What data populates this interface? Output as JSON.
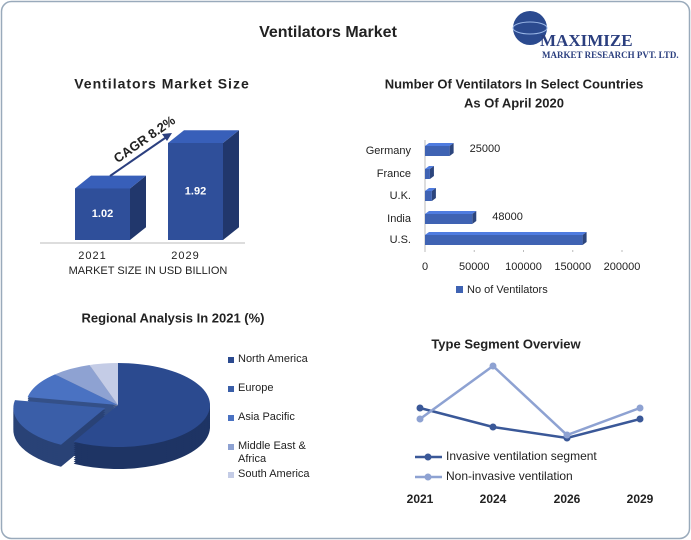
{
  "title": "Ventilators Market",
  "logo": {
    "name": "MAXIMIZE",
    "tagline": "MARKET RESEARCH PVT. LTD."
  },
  "chart_data": [
    {
      "type": "bar3d",
      "title": "Ventilators Market Size",
      "categories": [
        "2021",
        "2029"
      ],
      "values": [
        1.02,
        1.92
      ],
      "color": "#2f4f9a",
      "annotation": "CAGR 8.2%",
      "x_label": "MARKET SIZE IN USD BILLION"
    },
    {
      "type": "hbar",
      "title": [
        "Number Of Ventilators In Select Countries",
        "As Of April 2020"
      ],
      "categories": [
        "Germany",
        "France",
        "U.K.",
        "India",
        "U.S."
      ],
      "series": [
        {
          "name": "No of Ventilators",
          "color": "#3f63b3",
          "values": [
            25000,
            5000,
            7000,
            48000,
            160000
          ],
          "value_labels": [
            "25000",
            null,
            null,
            "48000",
            null
          ]
        }
      ],
      "xlim": [
        0,
        200000
      ],
      "xticks": [
        0,
        50000,
        100000,
        150000,
        200000
      ]
    },
    {
      "type": "pie3d",
      "title": "Regional Analysis In 2021 (%)",
      "categories": [
        "North America",
        "Europe",
        "Asia Pacific",
        "Middle East & Africa",
        "South America"
      ],
      "values": [
        58,
        20,
        10,
        7,
        5
      ],
      "colors": [
        "#2b4a8f",
        "#3a5ea8",
        "#4a72c2",
        "#8ea2d2",
        "#c4cce6"
      ]
    },
    {
      "type": "line",
      "title": "Type Segment Overview",
      "categories": [
        "2021",
        "2024",
        "2026",
        "2029"
      ],
      "series": [
        {
          "name": "Invasive ventilation segment",
          "color": "#3a5898",
          "values": [
            62,
            43,
            32,
            51
          ]
        },
        {
          "name": "Non-invasive ventilation",
          "color": "#8ea2d2",
          "values": [
            51,
            104,
            35,
            62
          ]
        }
      ]
    }
  ]
}
